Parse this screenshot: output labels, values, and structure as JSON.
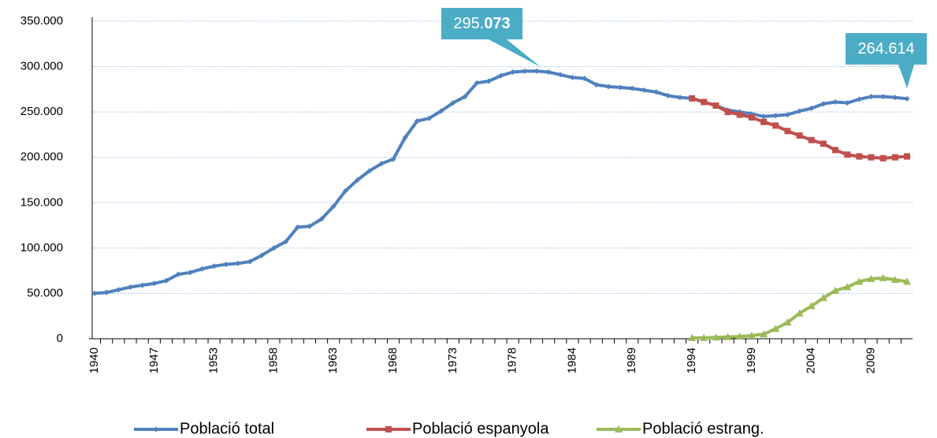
{
  "chart_data": {
    "type": "line",
    "categories": [
      "1940",
      null,
      null,
      null,
      null,
      "1947",
      null,
      null,
      null,
      null,
      "1953",
      null,
      null,
      null,
      null,
      "1958",
      null,
      null,
      null,
      null,
      "1963",
      null,
      null,
      null,
      null,
      "1968",
      null,
      null,
      null,
      null,
      "1973",
      null,
      null,
      null,
      null,
      "1978",
      null,
      null,
      null,
      null,
      "1984",
      null,
      null,
      null,
      null,
      "1989",
      null,
      null,
      null,
      null,
      "1994",
      null,
      null,
      null,
      null,
      "1999",
      null,
      null,
      null,
      null,
      "2004",
      null,
      null,
      null,
      null,
      "2009",
      null,
      null,
      null
    ],
    "series": [
      {
        "name": "Població total",
        "color": "#4f81bd",
        "marker": "diamond",
        "values": [
          50000,
          51000,
          54000,
          57000,
          59000,
          61000,
          64000,
          71000,
          73000,
          77000,
          80000,
          82000,
          83000,
          85000,
          92000,
          100000,
          107000,
          123000,
          124000,
          132000,
          146000,
          163000,
          175000,
          185000,
          193000,
          198000,
          222000,
          240000,
          243000,
          251000,
          260000,
          267000,
          282000,
          284000,
          290000,
          294000,
          295000,
          295073,
          294000,
          291000,
          288000,
          287000,
          280000,
          278000,
          277000,
          276000,
          274000,
          272000,
          268000,
          266000,
          265000,
          261000,
          257000,
          252000,
          250000,
          248000,
          245000,
          246000,
          247000,
          251000,
          254000,
          259000,
          261000,
          260000,
          264000,
          267000,
          267000,
          266000,
          264614
        ]
      },
      {
        "name": "Població espanyola",
        "color": "#c0504d",
        "marker": "square",
        "values": [
          null,
          null,
          null,
          null,
          null,
          null,
          null,
          null,
          null,
          null,
          null,
          null,
          null,
          null,
          null,
          null,
          null,
          null,
          null,
          null,
          null,
          null,
          null,
          null,
          null,
          null,
          null,
          null,
          null,
          null,
          null,
          null,
          null,
          null,
          null,
          null,
          null,
          null,
          null,
          null,
          null,
          null,
          null,
          null,
          null,
          null,
          null,
          null,
          null,
          null,
          265000,
          261000,
          257000,
          250000,
          247000,
          244000,
          239000,
          235000,
          229000,
          224000,
          219000,
          215000,
          208000,
          203000,
          201000,
          200000,
          199000,
          200000,
          201000
        ]
      },
      {
        "name": "Població estrang.",
        "color": "#9bbb59",
        "marker": "triangle",
        "values": [
          null,
          null,
          null,
          null,
          null,
          null,
          null,
          null,
          null,
          null,
          null,
          null,
          null,
          null,
          null,
          null,
          null,
          null,
          null,
          null,
          null,
          null,
          null,
          null,
          null,
          null,
          null,
          null,
          null,
          null,
          null,
          null,
          null,
          null,
          null,
          null,
          null,
          null,
          null,
          null,
          null,
          null,
          null,
          null,
          null,
          null,
          null,
          null,
          null,
          null,
          1000,
          1000,
          1500,
          2000,
          2500,
          3500,
          5000,
          11000,
          18000,
          28000,
          36000,
          45000,
          53000,
          57000,
          63000,
          66000,
          67000,
          65000,
          63000
        ]
      }
    ],
    "ylim": [
      0,
      350000
    ],
    "yticks": [
      0,
      {
        "value": 50000,
        "label": "50.000"
      },
      {
        "value": 100000,
        "label": "100.000"
      },
      {
        "value": 150000,
        "label": "150.000"
      },
      {
        "value": 200000,
        "label": "200.000"
      },
      {
        "value": 250000,
        "label": "250.000"
      },
      {
        "value": 300000,
        "label": "300.000"
      },
      {
        "value": 350000,
        "label": "350.000"
      }
    ],
    "grid": true,
    "legend": "bottom",
    "annotations": [
      {
        "parts": [
          "295.",
          "073"
        ],
        "color": "#4bacc6"
      },
      {
        "parts": [
          "264.614"
        ],
        "color": "#4bacc6"
      }
    ]
  }
}
